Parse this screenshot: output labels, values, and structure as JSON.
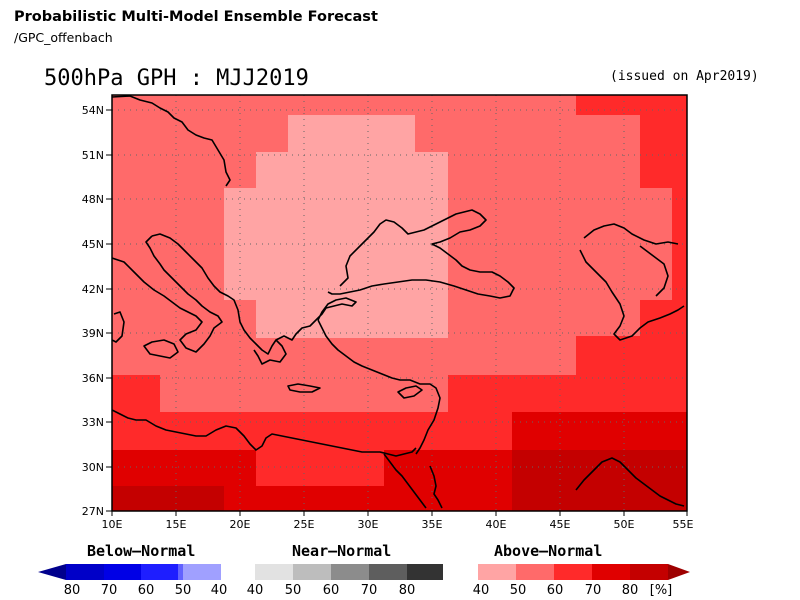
{
  "header": {
    "title": "Probabilistic Multi-Model Ensemble Forecast",
    "subtitle": "/GPC_offenbach",
    "variable_period": "500hPa GPH : MJJ2019",
    "issued": "(issued on Apr2019)"
  },
  "map": {
    "lon_range": [
      10,
      55
    ],
    "lat_range": [
      27,
      55
    ],
    "lon_ticks": [
      "10E",
      "15E",
      "20E",
      "25E",
      "30E",
      "35E",
      "40E",
      "45E",
      "50E",
      "55E"
    ],
    "lat_ticks": [
      "27N",
      "30N",
      "33N",
      "36N",
      "39N",
      "42N",
      "45N",
      "48N",
      "51N",
      "54N"
    ],
    "category_colors": {
      "above_40": "#ffa4a4",
      "above_50": "#ff6a6a",
      "above_60": "#ff2a2a",
      "above_70": "#e00000",
      "above_80": "#c40000"
    },
    "coastline_color": "#000000",
    "grid": "dotted"
  },
  "legend": {
    "below": {
      "title": "Below–Normal",
      "labels": [
        "80",
        "70",
        "60",
        "50",
        "40"
      ],
      "colors": [
        "#0000c8",
        "#0000e6",
        "#1e1eff",
        "#6262ff",
        "#a0a0ff"
      ]
    },
    "near": {
      "title": "Near–Normal",
      "labels": [
        "40",
        "50",
        "60",
        "70",
        "80"
      ],
      "colors": [
        "#e2e2e2",
        "#bdbdbd",
        "#8c8c8c",
        "#5e5e5e",
        "#333333"
      ]
    },
    "above": {
      "title": "Above–Normal",
      "labels": [
        "40",
        "50",
        "60",
        "70",
        "80"
      ],
      "colors": [
        "#ffa4a4",
        "#ff6a6a",
        "#ff2a2a",
        "#e00000",
        "#c40000"
      ],
      "unit": "[%]"
    }
  }
}
